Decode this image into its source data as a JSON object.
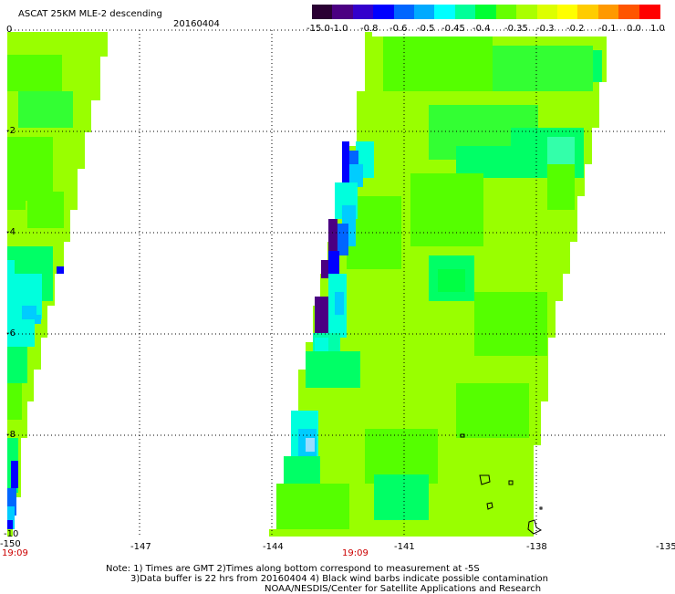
{
  "header": {
    "title": "ASCAT 25KM MLE-2 descending",
    "date": "20160404"
  },
  "colorbar": {
    "labels": [
      "-15.0",
      "-1.0",
      "-0.8",
      "-0.6",
      "-0.5",
      "-0.45",
      "-0.4",
      "-0.35",
      "-0.3",
      "-0.2",
      "-0.1",
      "0.0",
      "1.0"
    ],
    "colors": [
      "#2a0033",
      "#4b0082",
      "#3300cc",
      "#0000ff",
      "#0066ff",
      "#00aaff",
      "#00ffff",
      "#00ff99",
      "#00ff33",
      "#66ff00",
      "#aaff00",
      "#ddff00",
      "#ffff00",
      "#ffcc00",
      "#ff9900",
      "#ff5500",
      "#ff0000"
    ]
  },
  "axes": {
    "lat_labels": [
      "0",
      "-2",
      "-4",
      "-6",
      "-8",
      "-10"
    ],
    "lon_labels": [
      "-150",
      "-147",
      "-144",
      "-141",
      "-138",
      "-135"
    ],
    "time_labels": [
      "19:09",
      "19:09"
    ]
  },
  "notes": {
    "line1": "Note: 1) Times are GMT 2)Times along bottom correspond to measurement at -5S",
    "line2": "3)Data buffer is 22 hrs from 20160404 4) Black wind barbs indicate possible contamination",
    "line3": "NOAA/NESDIS/Center for Satellite Applications and Research"
  },
  "colors": {
    "base_swath": "#99ff00",
    "time_label": "#cc0000",
    "grid": "#000000"
  }
}
